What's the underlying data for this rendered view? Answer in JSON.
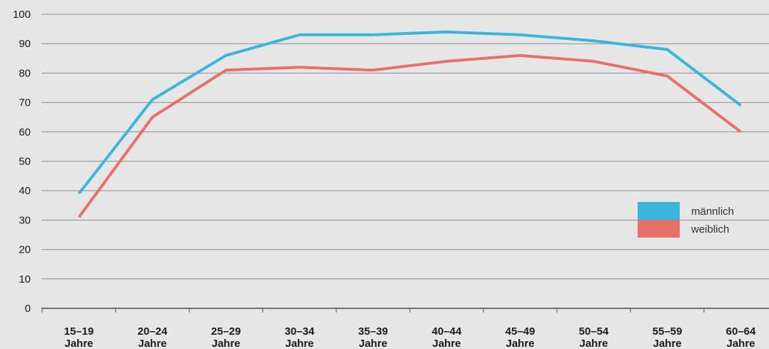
{
  "chart_data": {
    "type": "line",
    "categories": [
      [
        "15–19",
        "Jahre"
      ],
      [
        "20–24",
        "Jahre"
      ],
      [
        "25–29",
        "Jahre"
      ],
      [
        "30–34",
        "Jahre"
      ],
      [
        "35–39",
        "Jahre"
      ],
      [
        "40–44",
        "Jahre"
      ],
      [
        "45–49",
        "Jahre"
      ],
      [
        "50–54",
        "Jahre"
      ],
      [
        "55–59",
        "Jahre"
      ],
      [
        "60–64",
        "Jahre"
      ]
    ],
    "series": [
      {
        "name": "männlich",
        "color": "#3cb4e0",
        "values": [
          39,
          71,
          86,
          93,
          93,
          94,
          93,
          91,
          88,
          69
        ]
      },
      {
        "name": "weiblich",
        "color": "#e8706a",
        "values": [
          31,
          65,
          81,
          82,
          81,
          84,
          86,
          84,
          79,
          60
        ]
      }
    ],
    "ylim": [
      0,
      100
    ],
    "yticks": [
      0,
      10,
      20,
      30,
      40,
      50,
      60,
      70,
      80,
      90,
      100
    ],
    "grid": true,
    "legend": "right"
  }
}
